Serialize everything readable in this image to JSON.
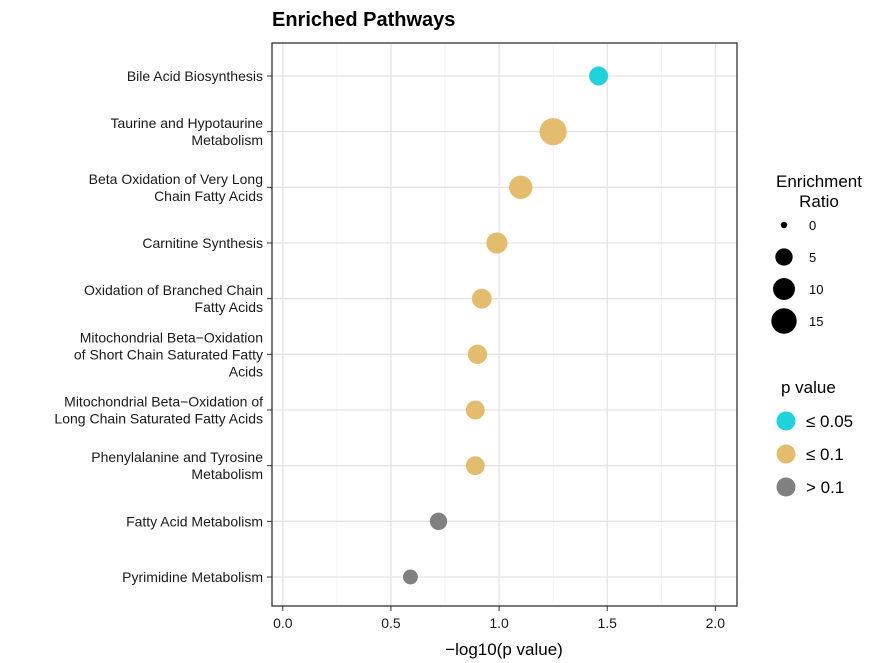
{
  "chart_data": {
    "type": "scatter",
    "title": "Enriched Pathways",
    "xlabel": "−log10(p value)",
    "ylabel": "",
    "xlim": [
      -0.05,
      2.1
    ],
    "x_ticks": [
      "0.0",
      "0.5",
      "1.0",
      "1.5",
      "2.0"
    ],
    "x_tick_values": [
      0,
      0.5,
      1.0,
      1.5,
      2.0
    ],
    "grid": true,
    "legend_position": "right",
    "points": [
      {
        "label": [
          "Bile Acid Biosynthesis"
        ],
        "x": 1.46,
        "enrichment_ratio": 6.5,
        "p_group": "≤ 0.05"
      },
      {
        "label": [
          "Taurine and Hypotaurine",
          "Metabolism"
        ],
        "x": 1.25,
        "enrichment_ratio": 18,
        "p_group": "≤ 0.1"
      },
      {
        "label": [
          "Beta Oxidation of Very Long",
          "Chain Fatty Acids"
        ],
        "x": 1.1,
        "enrichment_ratio": 12,
        "p_group": "≤ 0.1"
      },
      {
        "label": [
          "Carnitine Synthesis"
        ],
        "x": 0.99,
        "enrichment_ratio": 9,
        "p_group": "≤ 0.1"
      },
      {
        "label": [
          "Oxidation of Branched Chain",
          "Fatty Acids"
        ],
        "x": 0.92,
        "enrichment_ratio": 7.5,
        "p_group": "≤ 0.1"
      },
      {
        "label": [
          "Mitochondrial Beta−Oxidation",
          "of Short Chain Saturated Fatty",
          "Acids"
        ],
        "x": 0.9,
        "enrichment_ratio": 7,
        "p_group": "≤ 0.1"
      },
      {
        "label": [
          "Mitochondrial Beta−Oxidation of",
          "Long Chain Saturated Fatty Acids"
        ],
        "x": 0.89,
        "enrichment_ratio": 6.5,
        "p_group": "≤ 0.1"
      },
      {
        "label": [
          "Phenylalanine and Tyrosine",
          "Metabolism"
        ],
        "x": 0.89,
        "enrichment_ratio": 6.5,
        "p_group": "≤ 0.1"
      },
      {
        "label": [
          "Fatty Acid Metabolism"
        ],
        "x": 0.72,
        "enrichment_ratio": 5,
        "p_group": "> 0.1"
      },
      {
        "label": [
          "Pyrimidine Metabolism"
        ],
        "x": 0.59,
        "enrichment_ratio": 3,
        "p_group": "> 0.1"
      }
    ],
    "size_legend": {
      "title": [
        "Enrichment",
        "Ratio"
      ],
      "values": [
        0,
        5,
        10,
        15
      ]
    },
    "color_legend": {
      "title": "p value",
      "entries": [
        {
          "label": "≤ 0.05",
          "color": "#1ed3dc"
        },
        {
          "label": "≤ 0.1",
          "color": "#e3bc6d"
        },
        {
          "label": "> 0.1",
          "color": "#808080"
        }
      ]
    }
  }
}
